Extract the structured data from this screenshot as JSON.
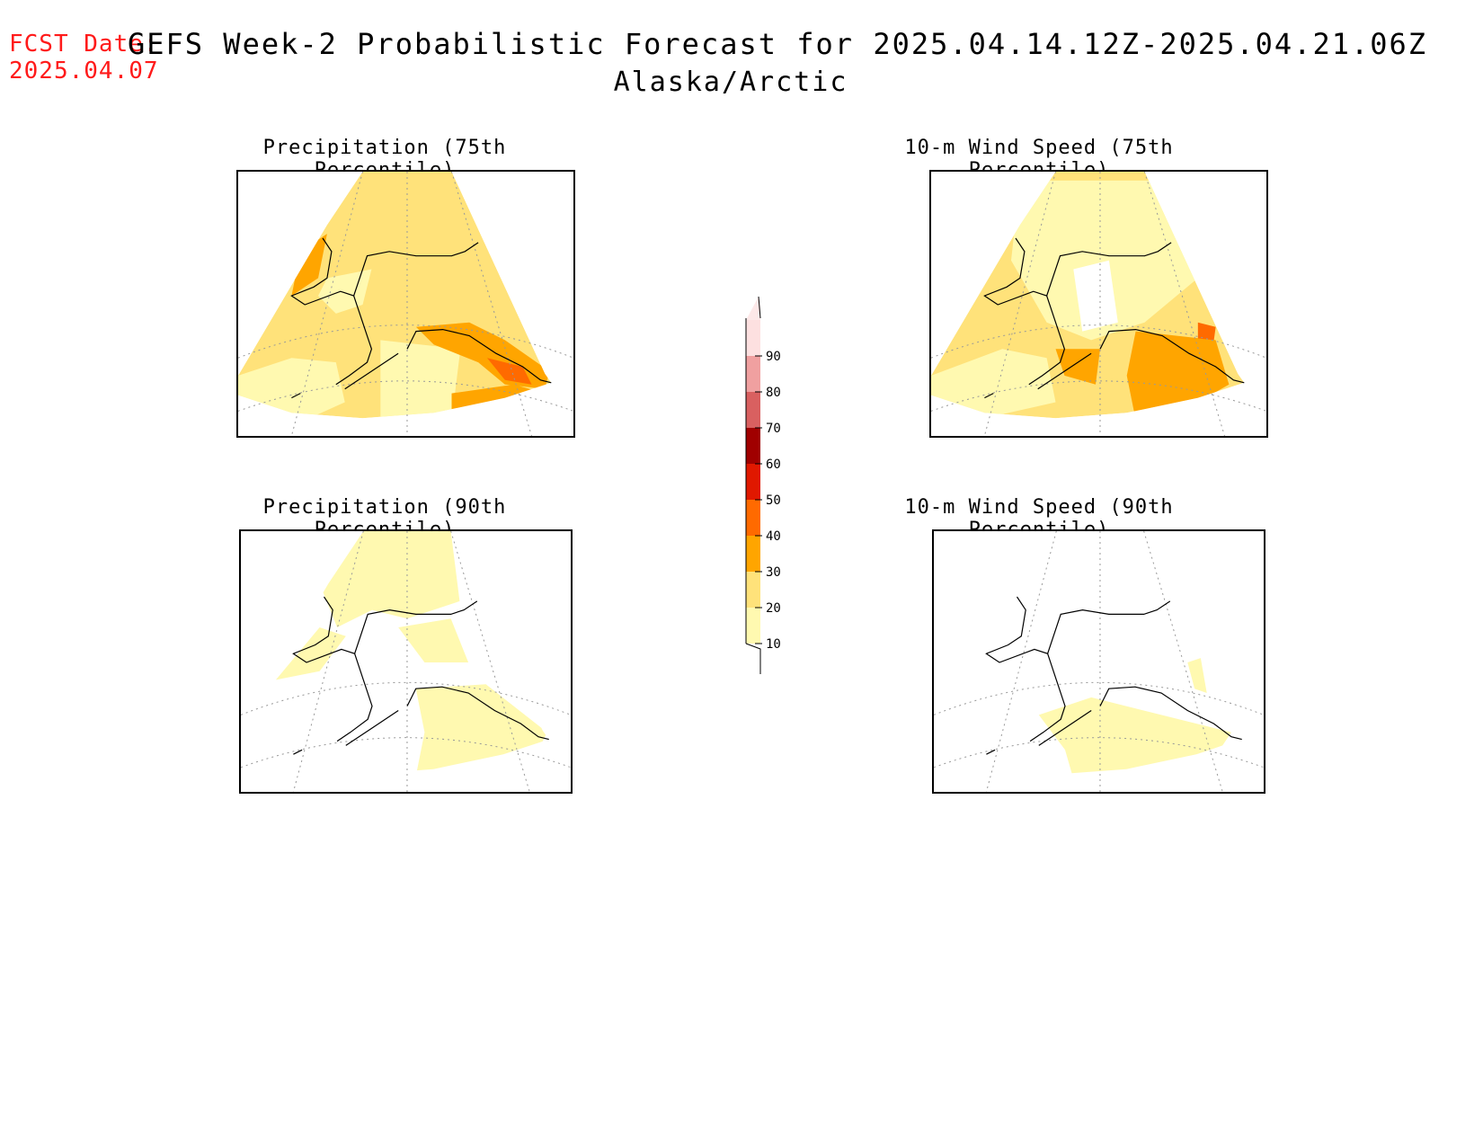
{
  "header": {
    "fcst_label": "FCST Date:",
    "fcst_date": "2025.04.07",
    "title": "GEFS Week-2 Probabilistic Forecast for 2025.04.14.12Z-2025.04.21.06Z",
    "region": "Alaska/Arctic"
  },
  "panels": [
    {
      "title": "Precipitation (75th Percentile)",
      "level": "high"
    },
    {
      "title": "10-m Wind Speed (75th Percentile)",
      "level": "high"
    },
    {
      "title": "Precipitation (90th Percentile)",
      "level": "low"
    },
    {
      "title": "10-m Wind Speed (90th Percentile)",
      "level": "verylow"
    }
  ],
  "colorbar": {
    "levels": [
      "10",
      "20",
      "30",
      "40",
      "50",
      "60",
      "70",
      "80",
      "90"
    ],
    "colors": [
      "#fff9b0",
      "#ffe27a",
      "#ffa500",
      "#ff6a00",
      "#e01800",
      "#a00000",
      "#d96060",
      "#f0a0a0",
      "#fde0e0"
    ]
  }
}
